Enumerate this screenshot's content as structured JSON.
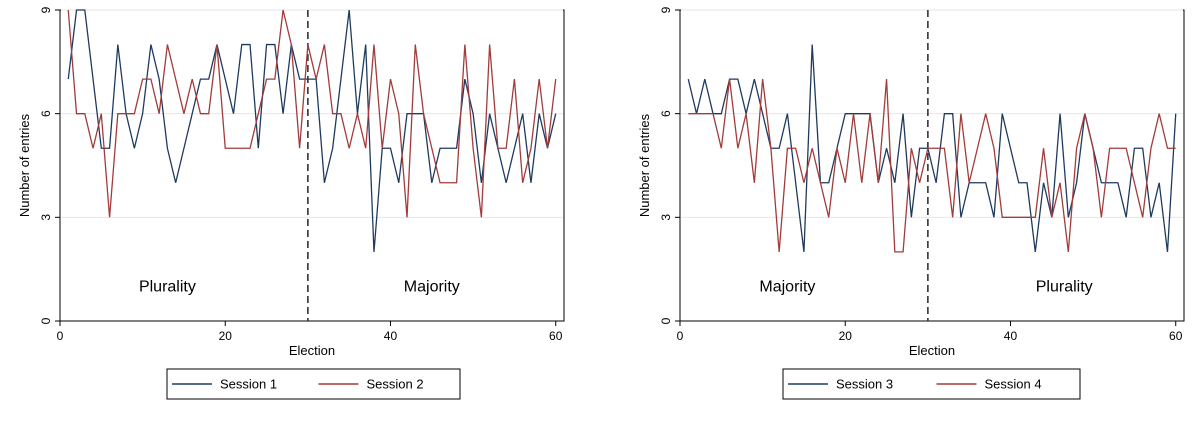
{
  "colors": {
    "navy": "#1f3a5f",
    "maroon": "#a23b3b",
    "grid": "#e6e6e6",
    "frame": "#000000"
  },
  "chart_data": [
    {
      "type": "line",
      "title": "",
      "xlabel": "Election",
      "ylabel": "Number of entries",
      "xlim": [
        0,
        61
      ],
      "ylim": [
        0,
        9
      ],
      "xticks": [
        0,
        20,
        40,
        60
      ],
      "yticks": [
        0,
        3,
        6,
        9
      ],
      "grid": true,
      "legend": "bottom",
      "divider_x": 30,
      "annotations": [
        {
          "text": "Plurality",
          "x": 13,
          "y": 1
        },
        {
          "text": "Majority",
          "x": 45,
          "y": 1
        }
      ],
      "x": [
        1,
        2,
        3,
        4,
        5,
        6,
        7,
        8,
        9,
        10,
        11,
        12,
        13,
        14,
        15,
        16,
        17,
        18,
        19,
        20,
        21,
        22,
        23,
        24,
        25,
        26,
        27,
        28,
        29,
        30,
        31,
        32,
        33,
        34,
        35,
        36,
        37,
        38,
        39,
        40,
        41,
        42,
        43,
        44,
        45,
        46,
        47,
        48,
        49,
        50,
        51,
        52,
        53,
        54,
        55,
        56,
        57,
        58,
        59,
        60
      ],
      "series": [
        {
          "name": "Session 1",
          "color": "#1f3a5f",
          "values": [
            7,
            9,
            9,
            7,
            5,
            5,
            8,
            6,
            5,
            6,
            8,
            7,
            5,
            4,
            5,
            6,
            7,
            7,
            8,
            7,
            6,
            8,
            8,
            5,
            8,
            8,
            6,
            8,
            7,
            7,
            7,
            4,
            5,
            7,
            9,
            6,
            8,
            2,
            5,
            5,
            4,
            6,
            6,
            6,
            4,
            5,
            5,
            5,
            7,
            6,
            4,
            6,
            5,
            4,
            5,
            6,
            4,
            6,
            5,
            6
          ]
        },
        {
          "name": "Session 2",
          "color": "#a23b3b",
          "values": [
            9,
            6,
            6,
            5,
            6,
            3,
            6,
            6,
            6,
            7,
            7,
            6,
            8,
            7,
            6,
            7,
            6,
            6,
            8,
            5,
            5,
            5,
            5,
            6,
            7,
            7,
            9,
            8,
            5,
            8,
            7,
            8,
            6,
            6,
            5,
            6,
            5,
            8,
            5,
            7,
            6,
            3,
            8,
            6,
            5,
            4,
            4,
            4,
            8,
            5,
            3,
            8,
            5,
            5,
            7,
            4,
            5,
            7,
            5,
            7
          ]
        }
      ]
    },
    {
      "type": "line",
      "title": "",
      "xlabel": "Election",
      "ylabel": "Number of entries",
      "xlim": [
        0,
        61
      ],
      "ylim": [
        0,
        9
      ],
      "xticks": [
        0,
        20,
        40,
        60
      ],
      "yticks": [
        0,
        3,
        6,
        9
      ],
      "grid": true,
      "legend": "bottom",
      "divider_x": 30,
      "annotations": [
        {
          "text": "Majority",
          "x": 13,
          "y": 1
        },
        {
          "text": "Plurality",
          "x": 46.5,
          "y": 1
        }
      ],
      "x": [
        1,
        2,
        3,
        4,
        5,
        6,
        7,
        8,
        9,
        10,
        11,
        12,
        13,
        14,
        15,
        16,
        17,
        18,
        19,
        20,
        21,
        22,
        23,
        24,
        25,
        26,
        27,
        28,
        29,
        30,
        31,
        32,
        33,
        34,
        35,
        36,
        37,
        38,
        39,
        40,
        41,
        42,
        43,
        44,
        45,
        46,
        47,
        48,
        49,
        50,
        51,
        52,
        53,
        54,
        55,
        56,
        57,
        58,
        59,
        60
      ],
      "series": [
        {
          "name": "Session 3",
          "color": "#1f3a5f",
          "values": [
            7,
            6,
            7,
            6,
            6,
            7,
            7,
            6,
            7,
            6,
            5,
            5,
            6,
            4,
            2,
            8,
            4,
            4,
            5,
            6,
            6,
            6,
            6,
            4,
            5,
            4,
            6,
            3,
            5,
            5,
            4,
            6,
            6,
            3,
            4,
            4,
            4,
            3,
            6,
            5,
            4,
            4,
            2,
            4,
            3,
            6,
            3,
            4,
            6,
            5,
            4,
            4,
            4,
            3,
            5,
            5,
            3,
            4,
            2,
            6
          ]
        },
        {
          "name": "Session 4",
          "color": "#a23b3b",
          "values": [
            6,
            6,
            6,
            6,
            5,
            7,
            5,
            6,
            4,
            7,
            5,
            2,
            5,
            5,
            4,
            5,
            4,
            3,
            5,
            4,
            6,
            4,
            6,
            4,
            7,
            2,
            2,
            5,
            4,
            5,
            5,
            5,
            3,
            6,
            4,
            5,
            6,
            5,
            3,
            3,
            3,
            3,
            3,
            5,
            3,
            4,
            2,
            5,
            6,
            5,
            3,
            5,
            5,
            5,
            4,
            3,
            5,
            6,
            5,
            5
          ]
        }
      ]
    }
  ]
}
